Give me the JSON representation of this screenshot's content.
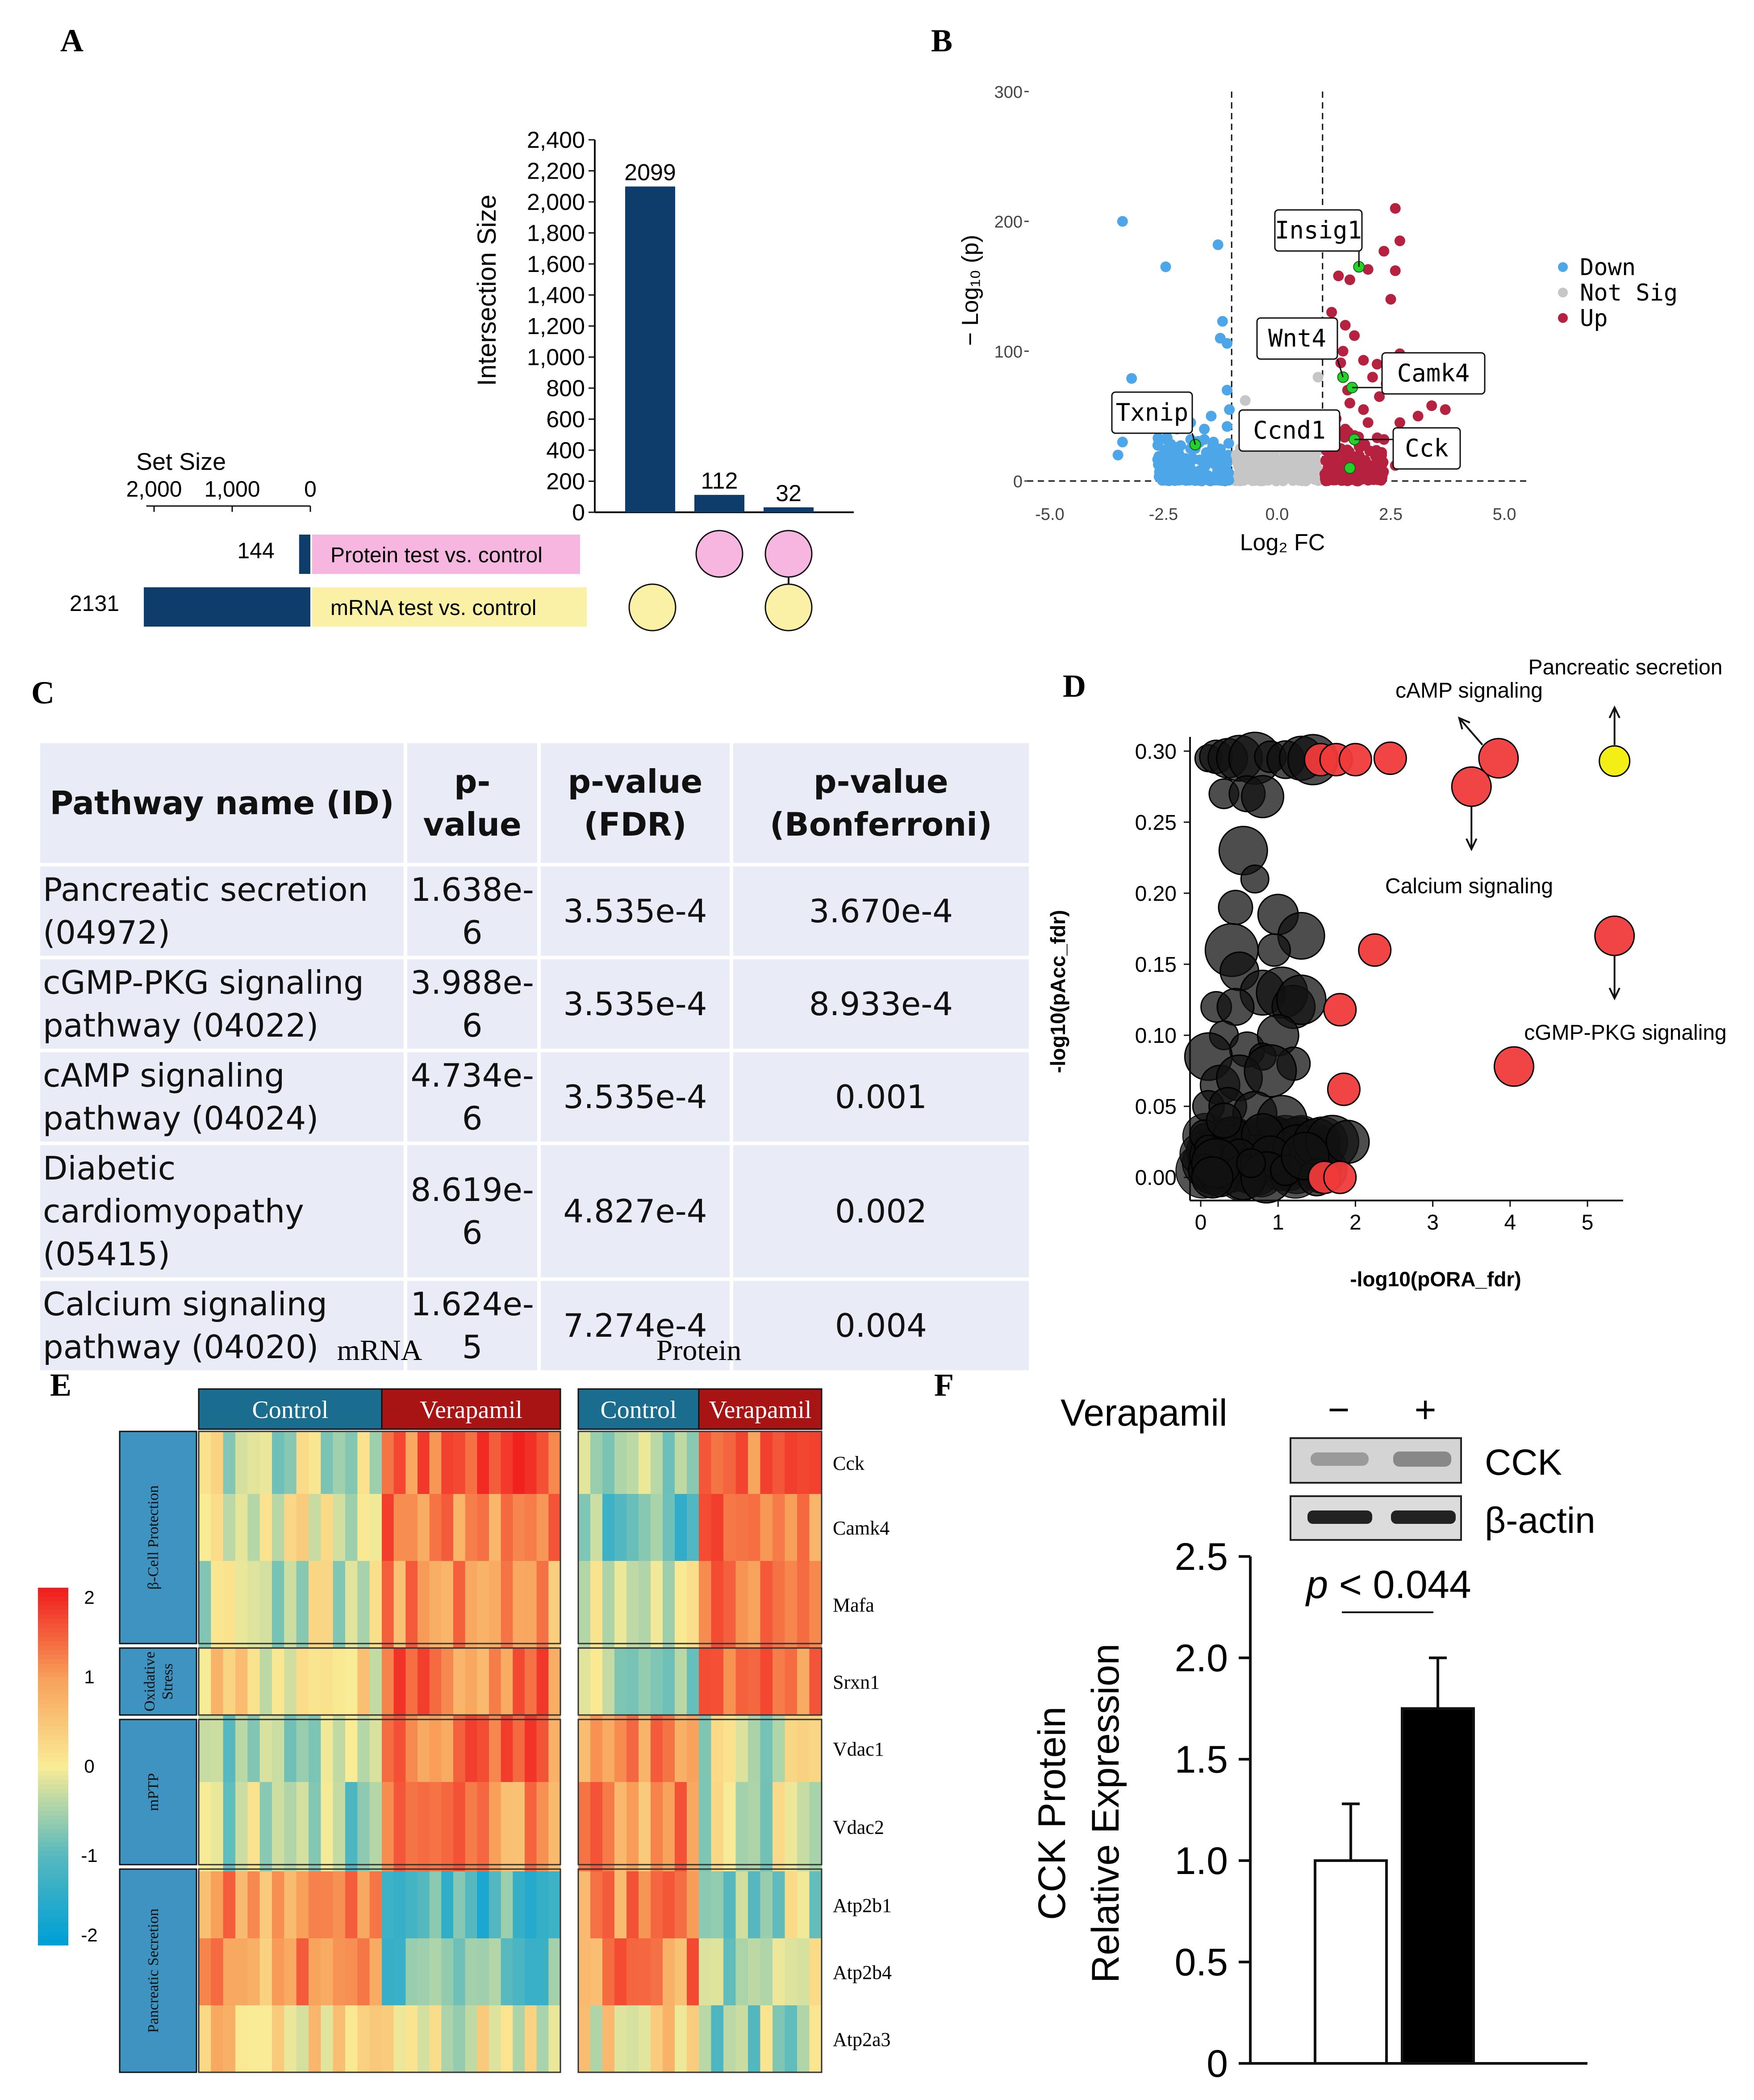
{
  "panels": {
    "A": "A",
    "B": "B",
    "C": "C",
    "D": "D",
    "E": "E",
    "F": "F"
  },
  "colors": {
    "navy": "#0f3d6b",
    "pink": "#f7b6df",
    "yellow": "#fbf1a6",
    "down": "#4da6e8",
    "notsig": "#c6c6c6",
    "up": "#b5213f",
    "highlight": "#25d02a",
    "red": "#f03a3a",
    "ctrl": "#1a6d8f",
    "vera": "#a81414"
  },
  "panel_a": {
    "chart_data": {
      "type": "bar",
      "title": "",
      "ylabel": "Intersection Size",
      "ylim": [
        0,
        2400
      ],
      "yticks": [
        "0",
        "200",
        "400",
        "600",
        "800",
        "1,000",
        "1,200",
        "1,400",
        "1,600",
        "1,800",
        "2,000",
        "2,200",
        "2,400"
      ],
      "values": [
        2099,
        112,
        32
      ],
      "value_labels": [
        "2099",
        "112",
        "32"
      ]
    },
    "set_size": {
      "label": "Set Size",
      "ticks": [
        "2,000",
        "1,000",
        "0"
      ],
      "sets": [
        {
          "name": "Protein test vs. control",
          "size": 144,
          "size_label": "144"
        },
        {
          "name": "mRNA test vs. control",
          "size": 2131,
          "size_label": "2131"
        }
      ]
    },
    "matrix": [
      [
        false,
        true
      ],
      [
        true,
        false
      ],
      [
        true,
        true
      ]
    ]
  },
  "panel_b": {
    "chart_data": {
      "type": "scatter",
      "xlabel": "Log₂ FC",
      "ylabel": "− Log₁₀ (p)",
      "xlim": [
        -5.5,
        5.5
      ],
      "ylim": [
        0,
        300
      ],
      "xticks": [
        "-5.0",
        "-2.5",
        "0.0",
        "2.5",
        "5.0"
      ],
      "yticks": [
        "0",
        "100",
        "200",
        "300"
      ],
      "thresholds_x": [
        -1,
        1
      ],
      "legend": [
        "Down",
        "Not Sig",
        "Up"
      ],
      "labels": [
        {
          "gene": "Insig1",
          "x": 1.8,
          "y": 165
        },
        {
          "gene": "Wnt4",
          "x": 1.45,
          "y": 80
        },
        {
          "gene": "Camk4",
          "x": 1.65,
          "y": 72
        },
        {
          "gene": "Txnip",
          "x": -1.8,
          "y": 28
        },
        {
          "gene": "Ccnd1",
          "x": 0.8,
          "y": 27
        },
        {
          "gene": "Cck",
          "x": 1.7,
          "y": 32
        }
      ],
      "series": [
        {
          "name": "Down",
          "points": [
            [
              -3.4,
              200
            ],
            [
              -2.45,
              165
            ],
            [
              -1.3,
              182
            ],
            [
              -1.2,
              123
            ],
            [
              -1.25,
              110
            ],
            [
              -1.1,
              106
            ],
            [
              -3.2,
              79
            ],
            [
              -2.2,
              40
            ],
            [
              -2.7,
              62
            ],
            [
              -1.9,
              45
            ],
            [
              -3.4,
              30
            ],
            [
              -1.1,
              70
            ],
            [
              -1.9,
              32
            ],
            [
              -2.3,
              22
            ],
            [
              -1.6,
              32
            ],
            [
              -1.1,
              42
            ],
            [
              -3.5,
              20
            ],
            [
              -1.5,
              18
            ],
            [
              -1.8,
              25
            ],
            [
              -1.6,
              12
            ],
            [
              -2.1,
              10
            ],
            [
              -1.3,
              11
            ],
            [
              -1.4,
              30
            ],
            [
              -2.4,
              8
            ],
            [
              -2.0,
              5
            ],
            [
              -1.7,
              8
            ],
            [
              -1.2,
              20
            ],
            [
              -2.6,
              14
            ],
            [
              -1.3,
              6
            ],
            [
              -1.2,
              2
            ],
            [
              -2.2,
              26
            ],
            [
              -1.6,
              40
            ],
            [
              -1.05,
              55
            ],
            [
              -1.45,
              50
            ]
          ]
        },
        {
          "name": "Not Sig",
          "points": [
            [
              0.9,
              80
            ],
            [
              -0.7,
              62
            ],
            [
              0.5,
              45
            ],
            [
              -0.3,
              30
            ],
            [
              0.3,
              20
            ],
            [
              -0.5,
              15
            ],
            [
              0.1,
              10
            ],
            [
              0.6,
              8
            ],
            [
              -0.8,
              12
            ],
            [
              0.2,
              5
            ],
            [
              -0.1,
              3
            ],
            [
              0.7,
              25
            ],
            [
              -0.6,
              28
            ],
            [
              0.4,
              35
            ],
            [
              0.8,
              50
            ],
            [
              -0.9,
              20
            ],
            [
              0.0,
              14
            ],
            [
              0.5,
              12
            ]
          ]
        },
        {
          "name": "Up",
          "points": [
            [
              2.6,
              210
            ],
            [
              2.7,
              185
            ],
            [
              2.35,
              177
            ],
            [
              2.0,
              163
            ],
            [
              2.6,
              162
            ],
            [
              1.35,
              158
            ],
            [
              1.6,
              155
            ],
            [
              2.5,
              140
            ],
            [
              1.2,
              130
            ],
            [
              1.5,
              120
            ],
            [
              1.1,
              118
            ],
            [
              1.7,
              112
            ],
            [
              1.45,
              100
            ],
            [
              2.7,
              98
            ],
            [
              1.4,
              91
            ],
            [
              1.9,
              93
            ],
            [
              2.2,
              90
            ],
            [
              2.1,
              80
            ],
            [
              2.4,
              75
            ],
            [
              2.8,
              78
            ],
            [
              4.1,
              85
            ],
            [
              3.9,
              82
            ],
            [
              1.6,
              60
            ],
            [
              3.4,
              58
            ],
            [
              1.9,
              55
            ],
            [
              3.7,
              55
            ],
            [
              3.1,
              50
            ],
            [
              1.3,
              48
            ],
            [
              2.0,
              45
            ],
            [
              2.7,
              45
            ],
            [
              1.5,
              40
            ],
            [
              2.35,
              32
            ],
            [
              1.8,
              28
            ],
            [
              3.0,
              20
            ],
            [
              1.2,
              18
            ],
            [
              1.6,
              15
            ],
            [
              2.05,
              12
            ],
            [
              1.3,
              10
            ],
            [
              1.9,
              8
            ],
            [
              1.1,
              5
            ],
            [
              2.6,
              12
            ],
            [
              1.4,
              25
            ],
            [
              2.3,
              22
            ],
            [
              1.7,
              35
            ],
            [
              1.15,
              36
            ],
            [
              2.9,
              35
            ],
            [
              1.55,
              70
            ],
            [
              2.25,
              65
            ]
          ]
        },
        {
          "name": "Highlighted",
          "points": [
            [
              1.8,
              165
            ],
            [
              1.45,
              80
            ],
            [
              1.65,
              72
            ],
            [
              -1.8,
              28
            ],
            [
              0.8,
              27
            ],
            [
              1.7,
              32
            ],
            [
              1.6,
              10
            ]
          ]
        }
      ]
    }
  },
  "panel_c": {
    "headers": [
      "Pathway name (ID)",
      "p-value",
      "p-value (FDR)",
      "p-value (Bonferroni)"
    ],
    "rows": [
      {
        "name": "Pancreatic secretion (04972)",
        "p": "1.638e-6",
        "fdr": "3.535e-4",
        "bonf": "3.670e-4"
      },
      {
        "name": "cGMP-PKG signaling pathway (04022)",
        "p": "3.988e-6",
        "fdr": "3.535e-4",
        "bonf": "8.933e-4"
      },
      {
        "name": "cAMP signaling pathway (04024)",
        "p": "4.734e-6",
        "fdr": "3.535e-4",
        "bonf": "0.001"
      },
      {
        "name": "Diabetic cardiomyopathy (05415)",
        "p": "8.619e-6",
        "fdr": "4.827e-4",
        "bonf": "0.002"
      },
      {
        "name": "Calcium signaling pathway (04020)",
        "p": "1.624e-5",
        "fdr": "7.274e-4",
        "bonf": "0.004"
      }
    ]
  },
  "panel_d": {
    "chart_data": {
      "type": "scatter",
      "xlabel": "-log10(pORA_fdr)",
      "ylabel": "-log10(pAcc_fdr)",
      "xlim": [
        -0.15,
        5.45
      ],
      "ylim": [
        -0.01,
        0.31
      ],
      "xticks": [
        "0",
        "1",
        "2",
        "3",
        "4",
        "5"
      ],
      "yticks": [
        "0.00",
        "0.05",
        "0.10",
        "0.15",
        "0.20",
        "0.25",
        "0.30"
      ],
      "annotations": [
        {
          "text": "Pancreatic secretion"
        },
        {
          "text": "cAMP signaling"
        },
        {
          "text": "Calcium signaling"
        },
        {
          "text": "cGMP-PKG signaling"
        }
      ],
      "series": [
        {
          "name": "black",
          "points": [
            [
              0.1,
              0.295
            ],
            [
              0.2,
              0.296
            ],
            [
              0.35,
              0.295
            ],
            [
              0.5,
              0.295
            ],
            [
              0.7,
              0.295
            ],
            [
              0.9,
              0.296
            ],
            [
              1.1,
              0.294
            ],
            [
              1.3,
              0.295
            ],
            [
              1.45,
              0.294
            ],
            [
              0.3,
              0.27
            ],
            [
              0.6,
              0.27
            ],
            [
              0.8,
              0.268
            ],
            [
              0.55,
              0.23
            ],
            [
              0.7,
              0.21
            ],
            [
              0.45,
              0.19
            ],
            [
              1.0,
              0.185
            ],
            [
              1.3,
              0.17
            ],
            [
              0.4,
              0.16
            ],
            [
              0.95,
              0.16
            ],
            [
              0.5,
              0.145
            ],
            [
              0.8,
              0.13
            ],
            [
              1.05,
              0.13
            ],
            [
              0.2,
              0.12
            ],
            [
              0.45,
              0.12
            ],
            [
              1.2,
              0.12
            ],
            [
              1.3,
              0.125
            ],
            [
              0.3,
              0.1
            ],
            [
              0.6,
              0.09
            ],
            [
              1.0,
              0.1
            ],
            [
              0.1,
              0.085
            ],
            [
              0.8,
              0.085
            ],
            [
              1.2,
              0.08
            ],
            [
              0.25,
              0.065
            ],
            [
              0.5,
              0.07
            ],
            [
              0.9,
              0.075
            ],
            [
              0.1,
              0.05
            ],
            [
              0.35,
              0.05
            ],
            [
              0.7,
              0.045
            ],
            [
              1.05,
              0.04
            ],
            [
              0.05,
              0.03
            ],
            [
              0.4,
              0.03
            ],
            [
              0.8,
              0.03
            ],
            [
              1.25,
              0.02
            ],
            [
              0.1,
              0.02
            ],
            [
              0.5,
              0.015
            ],
            [
              0.9,
              0.015
            ],
            [
              1.5,
              0.025
            ],
            [
              1.7,
              0.025
            ],
            [
              0.05,
              0.005
            ],
            [
              0.25,
              0.0
            ],
            [
              0.55,
              0.0
            ],
            [
              0.85,
              0.0
            ],
            [
              1.1,
              0.005
            ],
            [
              1.5,
              0.0
            ],
            [
              1.9,
              0.025
            ],
            [
              0.2,
              0.01
            ],
            [
              0.65,
              0.01
            ],
            [
              0.3,
              0.04
            ],
            [
              0.15,
              0.0
            ],
            [
              1.35,
              0.015
            ]
          ]
        },
        {
          "name": "red",
          "points": [
            [
              1.55,
              0.294
            ],
            [
              1.75,
              0.294
            ],
            [
              2.0,
              0.294
            ],
            [
              2.45,
              0.295
            ],
            [
              3.5,
              0.275
            ],
            [
              3.85,
              0.295
            ],
            [
              5.35,
              0.17
            ],
            [
              4.05,
              0.078
            ],
            [
              2.25,
              0.16
            ],
            [
              1.8,
              0.118
            ],
            [
              1.85,
              0.062
            ],
            [
              1.6,
              0.0
            ],
            [
              1.8,
              0.0
            ]
          ]
        },
        {
          "name": "yellow",
          "points": [
            [
              5.35,
              0.293
            ]
          ]
        }
      ]
    }
  },
  "panel_e": {
    "group_titles": [
      "mRNA",
      "Protein"
    ],
    "conditions": [
      "Control",
      "Verapamil",
      "Control",
      "Verapamil"
    ],
    "categories": [
      "β-Cell Protection",
      "Oxidative Stress",
      "mPTP",
      "Pancreatic Secretion"
    ],
    "genes": [
      "Cck",
      "Camk4",
      "Mafa",
      "Srxn1",
      "Vdac1",
      "Vdac2",
      "Atp2b1",
      "Atp2b4",
      "Atp2a3"
    ],
    "scale": {
      "ticks": [
        "2",
        "1",
        "0",
        "-1",
        "-2"
      ],
      "range": [
        -2,
        2
      ]
    },
    "chart_data": {
      "type": "heatmap",
      "row_means": {
        "mRNA_control": [
          -0.3,
          -0.1,
          -0.2,
          0.1,
          -0.5,
          -0.5,
          1.0,
          1.0,
          0.4
        ],
        "mRNA_verapamil": [
          1.4,
          1.2,
          1.0,
          1.3,
          1.2,
          1.0,
          -1.2,
          -0.9,
          0.0
        ],
        "protein_control": [
          -0.3,
          -0.8,
          -0.3,
          -0.5,
          1.0,
          1.0,
          1.0,
          1.2,
          0.1
        ],
        "protein_verapamil": [
          1.3,
          1.2,
          1.2,
          1.2,
          -0.3,
          -0.3,
          -0.4,
          -0.4,
          -0.5
        ]
      }
    }
  },
  "panel_f": {
    "treatment_label": "Verapamil",
    "lane_minus": "−",
    "lane_plus": "+",
    "band1": "CCK",
    "band2": "β-actin",
    "chart_data": {
      "type": "bar",
      "categories": [
        "−",
        "+"
      ],
      "values": [
        1.0,
        1.75
      ],
      "errors": [
        0.28,
        0.25
      ],
      "ylim": [
        0,
        2.5
      ],
      "yticks": [
        "0",
        "0.5",
        "1.0",
        "1.5",
        "2.0",
        "2.5"
      ],
      "ylabel": [
        "CCK Protein",
        "Relative Expression"
      ],
      "annotation": "p < 0.044"
    }
  }
}
